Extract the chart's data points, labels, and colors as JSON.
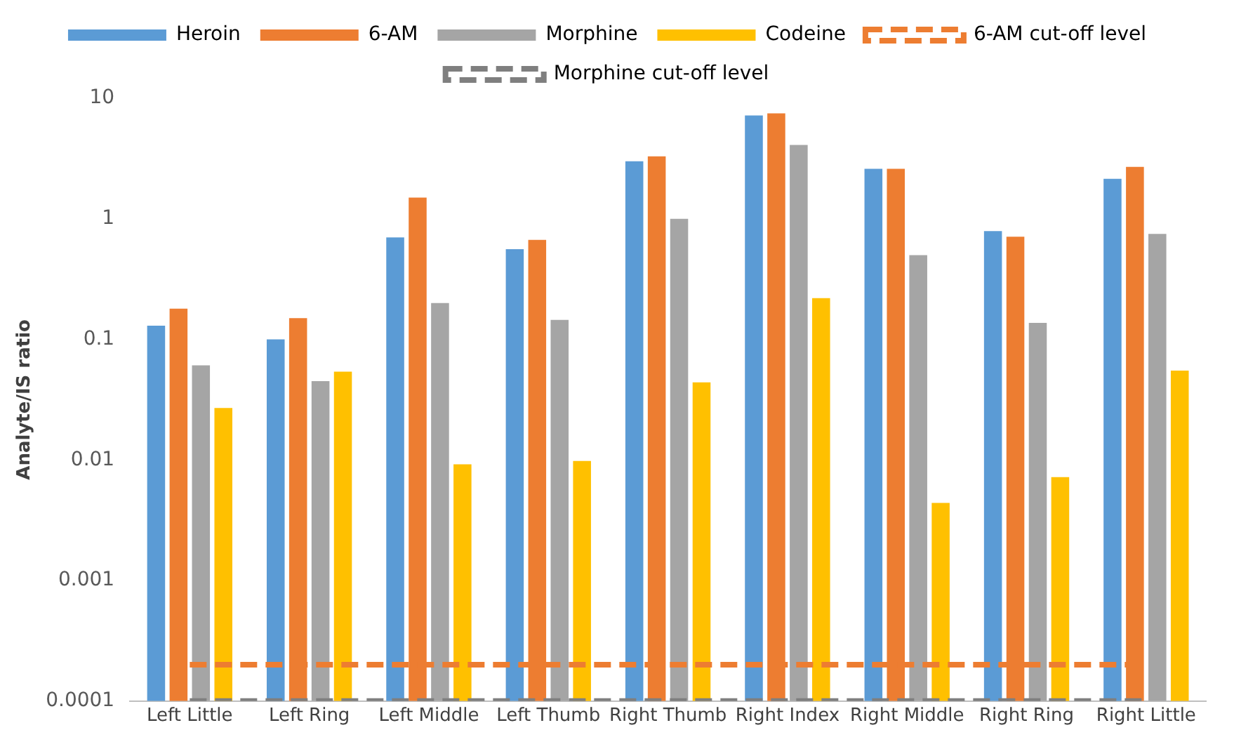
{
  "chart_data": {
    "type": "bar",
    "ylabel": "Analyte/IS ratio",
    "log": "y",
    "ylim": [
      0.0001,
      10
    ],
    "yticks": [
      0.0001,
      0.001,
      0.01,
      0.1,
      1,
      10
    ],
    "grid": false,
    "legend": "top",
    "categories": [
      "Left Little",
      "Left Ring",
      "Left Middle",
      "Left Thumb",
      "Right Thumb",
      "Right Index",
      "Right Middle",
      "Right Ring",
      "Right Little"
    ],
    "series": [
      {
        "name": "Heroin",
        "color": "#5b9bd5",
        "values": [
          0.13,
          0.1,
          0.7,
          0.56,
          3.0,
          7.2,
          2.6,
          0.79,
          2.15
        ]
      },
      {
        "name": "6-AM",
        "color": "#ed7d31",
        "values": [
          0.18,
          0.15,
          1.5,
          0.67,
          3.3,
          7.5,
          2.6,
          0.71,
          2.7
        ]
      },
      {
        "name": "Morphine",
        "color": "#a5a5a5",
        "values": [
          0.061,
          0.045,
          0.2,
          0.145,
          1.0,
          4.1,
          0.5,
          0.137,
          0.75
        ]
      },
      {
        "name": "Codeine",
        "color": "#ffc000",
        "values": [
          0.027,
          0.054,
          0.0092,
          0.0098,
          0.044,
          0.22,
          0.0044,
          0.0072,
          0.055
        ]
      },
      {
        "name": "6-AM cut-off level",
        "type": "line",
        "line_style": "dashed",
        "marker": "none",
        "color": "#ed7d31",
        "values": [
          0.0002,
          0.0002,
          0.0002,
          0.0002,
          0.0002,
          0.0002,
          0.0002,
          0.0002,
          0.0002
        ]
      },
      {
        "name": "Morphine cut-off level",
        "type": "line",
        "line_style": "dashed",
        "marker": "none",
        "color": "#7f7f7f",
        "values": [
          0.0001,
          0.0001,
          0.0001,
          0.0001,
          0.0001,
          0.0001,
          0.0001,
          0.0001,
          0.0001
        ]
      }
    ]
  }
}
